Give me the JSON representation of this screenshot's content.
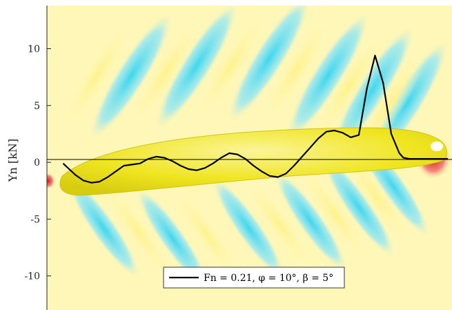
{
  "chart_data": {
    "type": "line",
    "title": "",
    "xlabel": "",
    "ylabel": "Yn [kN]",
    "ylim": [
      -13,
      13.8
    ],
    "xlim": [
      0,
      1
    ],
    "yticks": [
      10,
      5,
      0,
      -5,
      -10
    ],
    "ytick_labels": [
      "10",
      "5",
      "0",
      "-5",
      "-10"
    ],
    "grid": false,
    "legend": {
      "position": "bottom-center",
      "entries": [
        "Fn = 0.21, φ = 10°, β = 5°"
      ]
    },
    "background": "hull-wave-contour",
    "colors": {
      "line": "#000000",
      "hull": "#efe61e",
      "positive_wave": "#fff5a8",
      "negative_wave": "#5ad9ee",
      "high_pressure": "#e23030"
    },
    "series": [
      {
        "name": "Fn = 0.21, φ = 10°, β = 5°",
        "x": [
          0.04,
          0.055,
          0.07,
          0.09,
          0.11,
          0.13,
          0.15,
          0.17,
          0.19,
          0.21,
          0.23,
          0.25,
          0.27,
          0.29,
          0.31,
          0.33,
          0.35,
          0.37,
          0.39,
          0.41,
          0.43,
          0.45,
          0.47,
          0.49,
          0.51,
          0.53,
          0.55,
          0.57,
          0.59,
          0.61,
          0.63,
          0.65,
          0.67,
          0.69,
          0.71,
          0.73,
          0.75,
          0.77,
          0.79,
          0.81,
          0.83,
          0.85,
          0.87,
          0.88,
          0.895,
          0.905,
          0.915,
          0.925,
          0.94,
          0.95,
          0.96,
          0.966,
          0.97,
          0.974,
          0.977,
          0.98,
          0.983,
          0.986,
          0.99
        ],
        "y": [
          -0.1,
          -0.6,
          -1.1,
          -1.6,
          -1.8,
          -1.7,
          -1.3,
          -0.8,
          -0.3,
          -0.2,
          -0.1,
          0.3,
          0.5,
          0.4,
          0.1,
          -0.3,
          -0.6,
          -0.7,
          -0.5,
          -0.1,
          0.4,
          0.8,
          0.7,
          0.3,
          -0.3,
          -0.8,
          -1.2,
          -1.3,
          -1.0,
          -0.3,
          0.5,
          1.3,
          2.1,
          2.7,
          2.8,
          2.6,
          2.2,
          2.4,
          6.5,
          9.4,
          7.0,
          2.5,
          0.8,
          0.4,
          0.3,
          0.3,
          0.3,
          0.3,
          0.3,
          0.3,
          0.3,
          0.3,
          0.3,
          0.3,
          0.3,
          0.3,
          0.3,
          0.3,
          0.3
        ]
      }
    ]
  }
}
